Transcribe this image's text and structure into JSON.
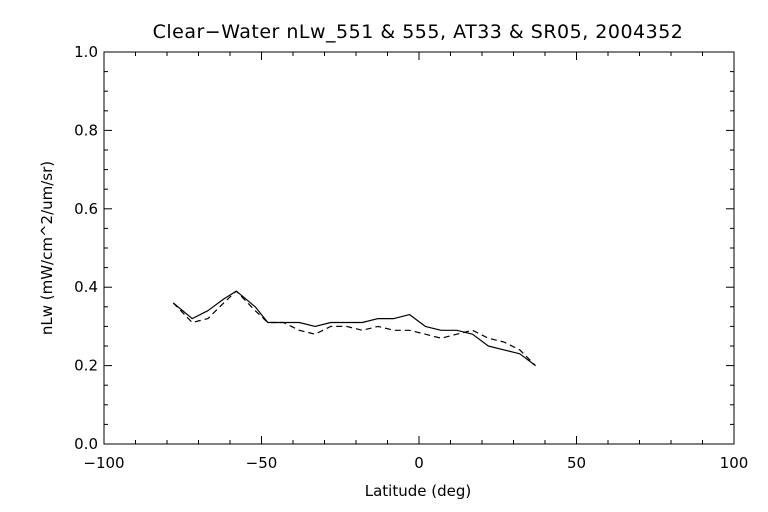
{
  "chart_data": {
    "type": "line",
    "title": "Clear−Water nLw_551 & 555, AT33 & SR05, 2004352",
    "xlabel": "Latitude (deg)",
    "ylabel": "nLw (mW/cm^2/um/sr)",
    "xlim": [
      -100,
      100
    ],
    "ylim": [
      0.0,
      1.0
    ],
    "x_ticks": [
      -100,
      -50,
      0,
      50,
      100
    ],
    "x_tick_labels": [
      "−100",
      "−50",
      "0",
      "50",
      "100"
    ],
    "y_ticks": [
      0.0,
      0.2,
      0.4,
      0.6,
      0.8,
      1.0
    ],
    "y_tick_labels": [
      "0.0",
      "0.2",
      "0.4",
      "0.6",
      "0.8",
      "1.0"
    ],
    "grid": false,
    "legend": "none",
    "series": [
      {
        "style": "solid",
        "x": [
          -78,
          -72,
          -67,
          -62,
          -58,
          -52,
          -48,
          -43,
          -38,
          -33,
          -28,
          -23,
          -18,
          -13,
          -8,
          -3,
          2,
          7,
          12,
          17,
          22,
          27,
          32,
          37
        ],
        "y": [
          0.36,
          0.32,
          0.34,
          0.37,
          0.39,
          0.35,
          0.31,
          0.31,
          0.31,
          0.3,
          0.31,
          0.31,
          0.31,
          0.32,
          0.32,
          0.33,
          0.3,
          0.29,
          0.29,
          0.28,
          0.25,
          0.24,
          0.23,
          0.2
        ]
      },
      {
        "style": "dashed",
        "x": [
          -78,
          -72,
          -67,
          -62,
          -58,
          -52,
          -48,
          -43,
          -38,
          -33,
          -28,
          -23,
          -18,
          -13,
          -8,
          -3,
          2,
          7,
          12,
          17,
          22,
          27,
          32,
          37
        ],
        "y": [
          0.36,
          0.31,
          0.32,
          0.36,
          0.39,
          0.34,
          0.31,
          0.31,
          0.29,
          0.28,
          0.3,
          0.3,
          0.29,
          0.3,
          0.29,
          0.29,
          0.28,
          0.27,
          0.28,
          0.29,
          0.27,
          0.26,
          0.24,
          0.2
        ]
      }
    ]
  }
}
